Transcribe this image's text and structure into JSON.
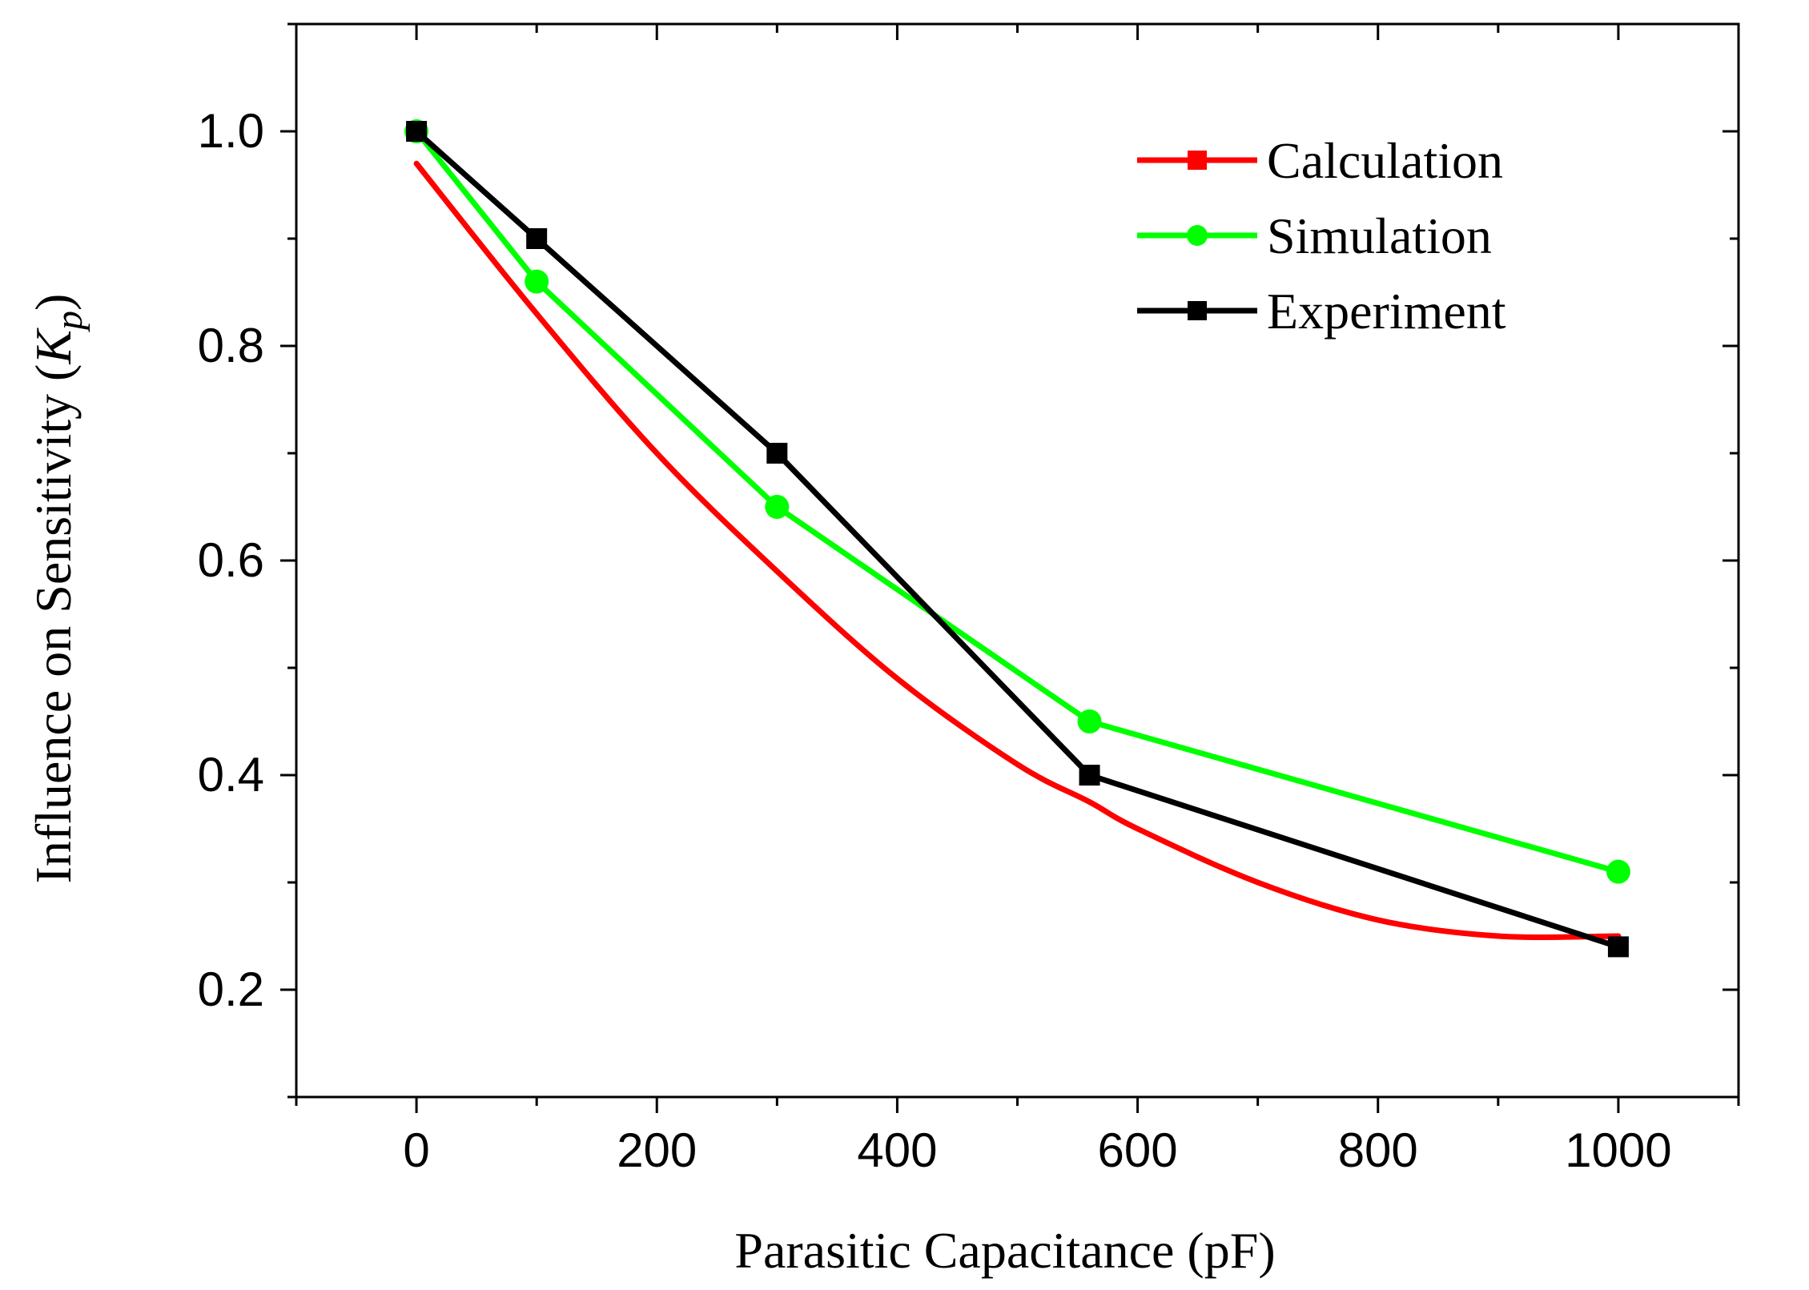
{
  "chart_data": {
    "type": "line",
    "title": "",
    "xlabel": "Parasitic Capacitance (pF)",
    "ylabel_prefix": "Influence on Sensitivity (",
    "ylabel_symbol": "K",
    "ylabel_subscript": "p",
    "ylabel_suffix": ")",
    "xlim": [
      -100,
      1100
    ],
    "ylim": [
      0.1,
      1.1
    ],
    "x_ticks": [
      0,
      200,
      400,
      600,
      800,
      1000
    ],
    "x_tick_labels": [
      "0",
      "200",
      "400",
      "600",
      "800",
      "1000"
    ],
    "x_minor_ticks": [
      -100,
      100,
      300,
      500,
      700,
      900,
      1100
    ],
    "y_ticks": [
      0.2,
      0.4,
      0.6,
      0.8,
      1.0
    ],
    "y_tick_labels": [
      "0.2",
      "0.4",
      "0.6",
      "0.8",
      "1.0"
    ],
    "y_minor_ticks": [
      0.1,
      0.3,
      0.5,
      0.7,
      0.9,
      1.1
    ],
    "grid": false,
    "legend_position": "top-right",
    "series": [
      {
        "name": "Calculation",
        "color": "#ff0000",
        "marker": "square",
        "smooth": true,
        "show_markers": false,
        "x": [
          0,
          100,
          200,
          300,
          400,
          500,
          560,
          600,
          700,
          800,
          900,
          1000
        ],
        "y": [
          0.97,
          0.83,
          0.7,
          0.59,
          0.49,
          0.41,
          0.375,
          0.35,
          0.3,
          0.265,
          0.25,
          0.25
        ]
      },
      {
        "name": "Simulation",
        "color": "#00ff00",
        "marker": "circle",
        "smooth": false,
        "show_markers": true,
        "x": [
          0,
          100,
          300,
          560,
          1000
        ],
        "y": [
          1.0,
          0.86,
          0.65,
          0.45,
          0.31
        ]
      },
      {
        "name": "Experiment",
        "color": "#000000",
        "marker": "square",
        "smooth": false,
        "show_markers": true,
        "x": [
          0,
          100,
          300,
          560,
          1000
        ],
        "y": [
          1.0,
          0.9,
          0.7,
          0.4,
          0.24
        ]
      }
    ]
  }
}
